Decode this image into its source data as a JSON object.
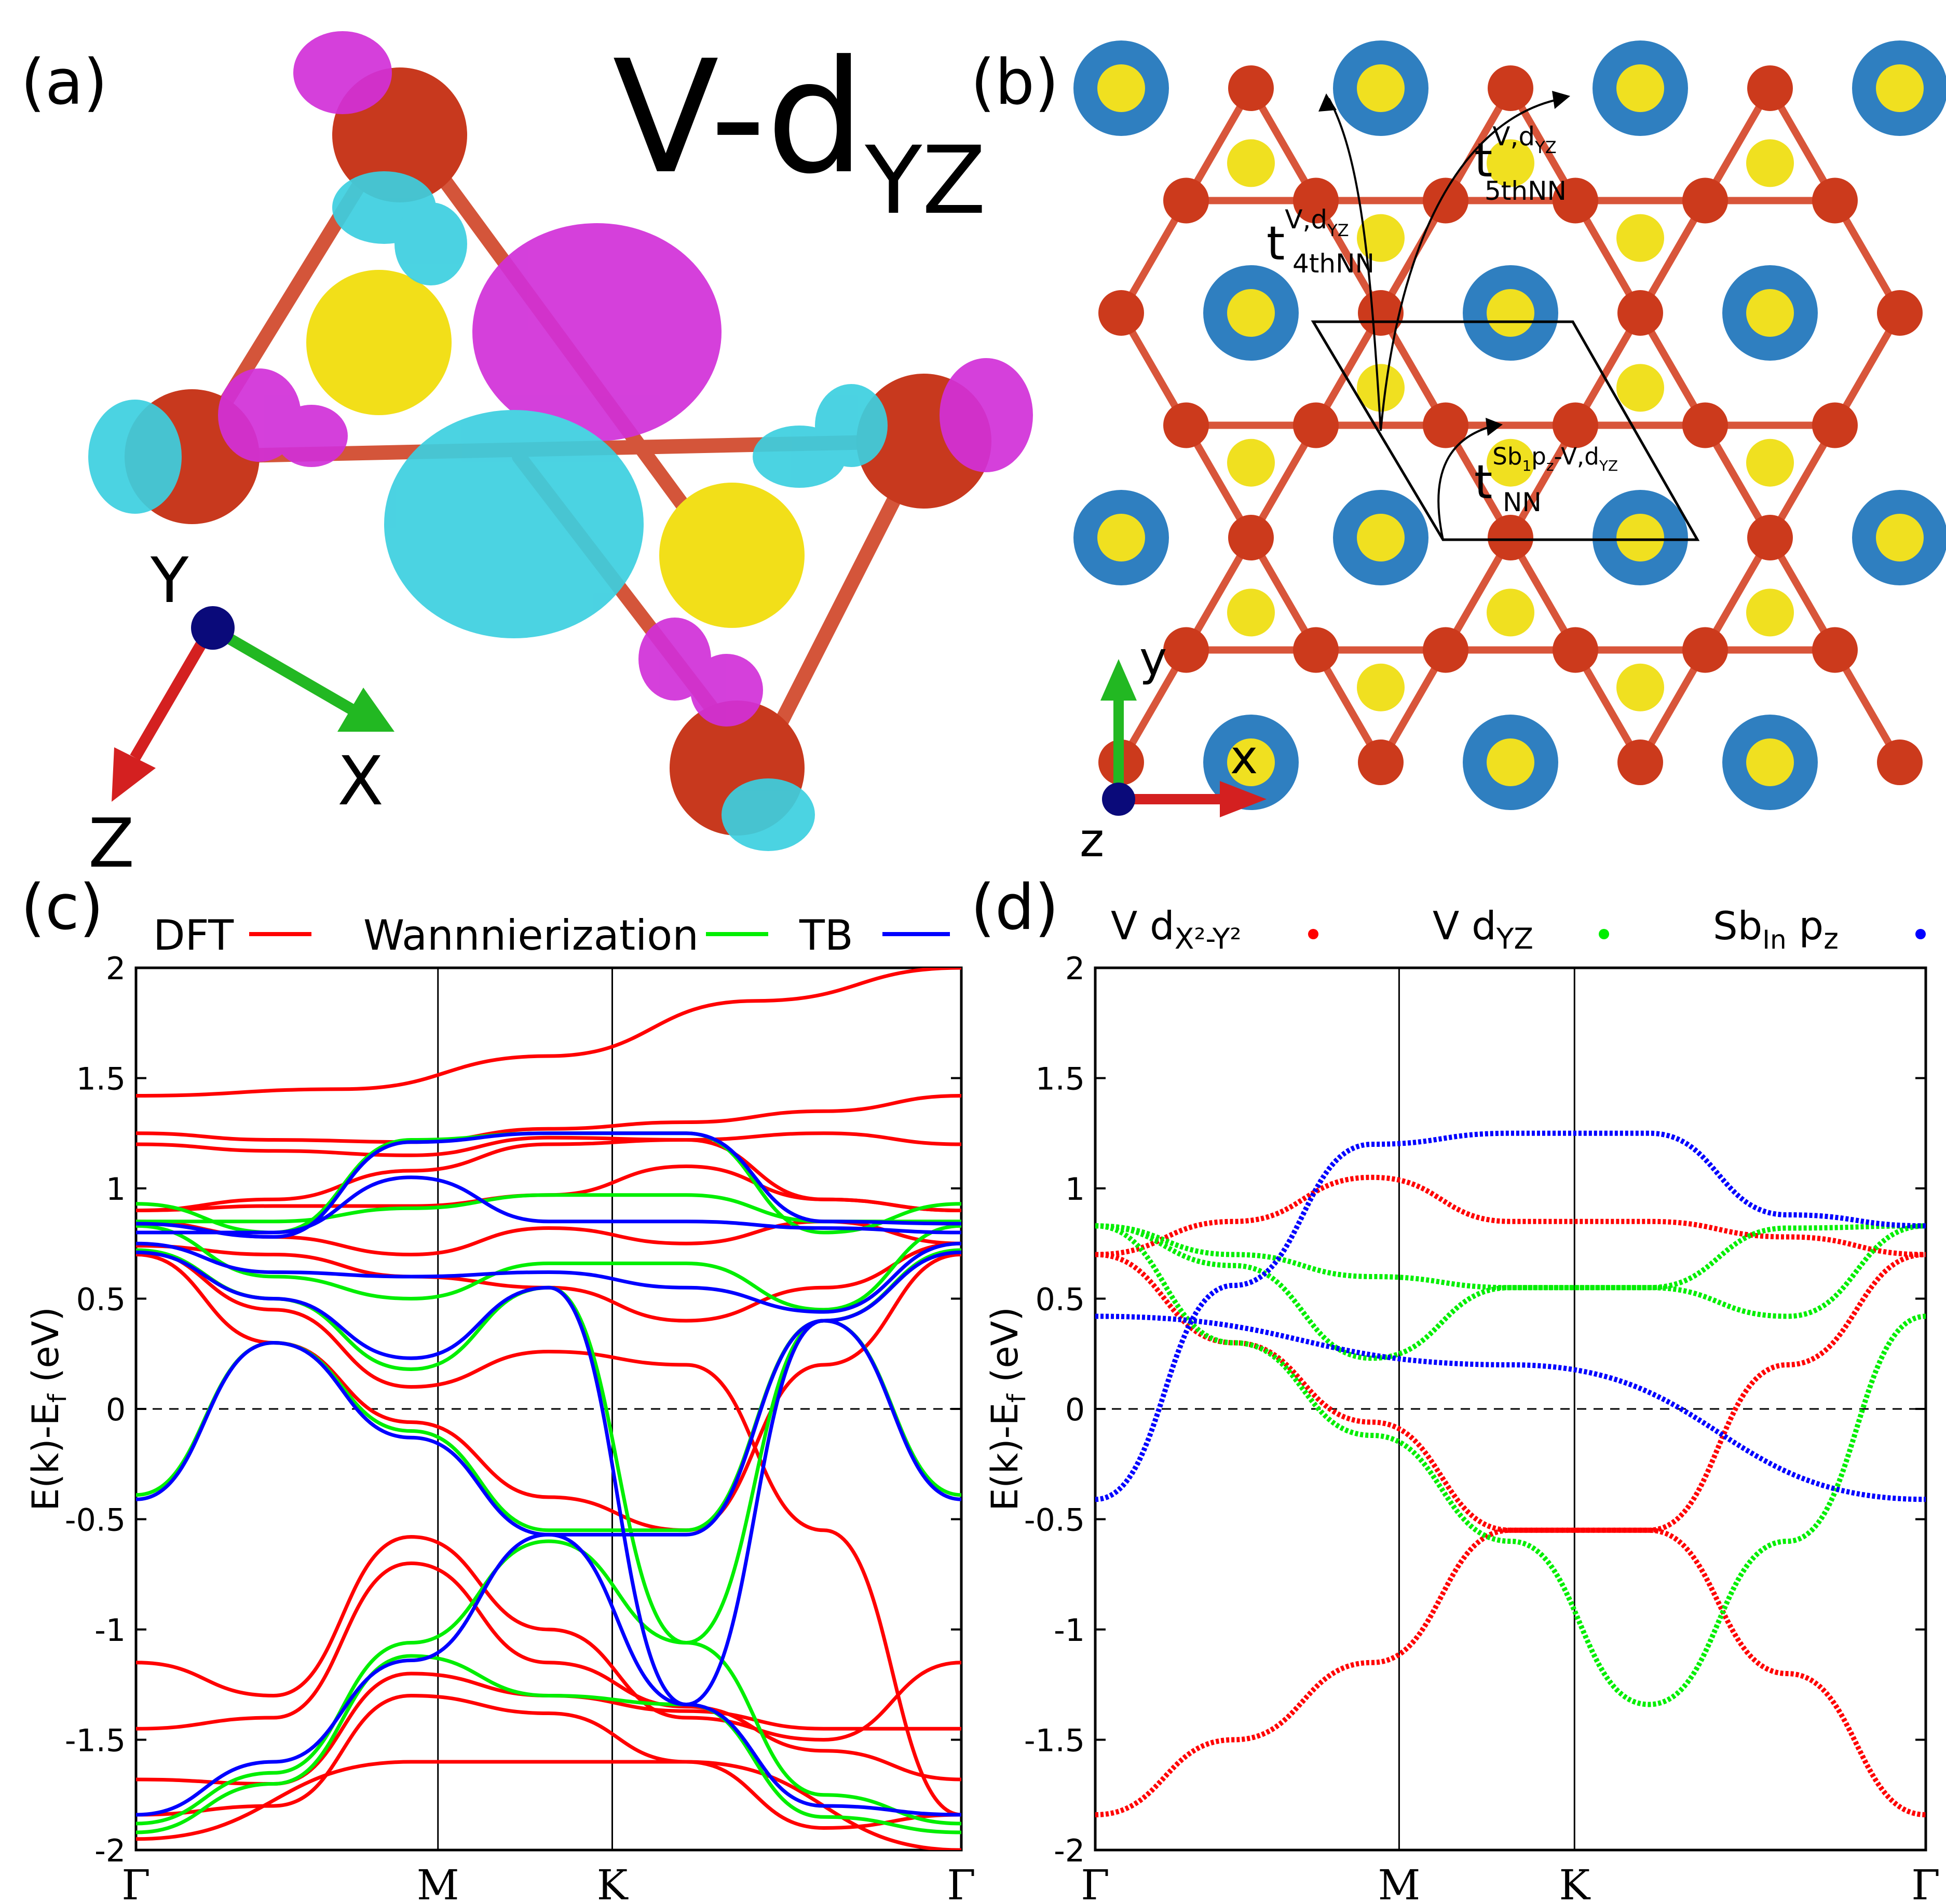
{
  "panel_a": {
    "label": "(a)",
    "title_main": "V-d",
    "title_sub": "YZ",
    "axis_y": "Y",
    "axis_x": "X",
    "axis_z": "Z",
    "colors": {
      "atom_v": "#c8391e",
      "atom_sb": "#f5e11a",
      "lobe_pos": "#d130d8",
      "lobe_neg": "#3ccfe0",
      "axis_x": "#22b822",
      "axis_z": "#d42020",
      "axis_y": "#0a0a7a"
    }
  },
  "panel_b": {
    "label": "(b)",
    "hop_4th": {
      "t": "t",
      "sup_main": "V,d",
      "sup_sub": "YZ",
      "sub": "4thNN"
    },
    "hop_5th": {
      "t": "t",
      "sup_main": "V,d",
      "sup_sub": "YZ",
      "sub": "5thNN"
    },
    "hop_nn": {
      "t": "t",
      "sup_a": "Sb",
      "sup_a_sub": "1",
      "sup_b": "p",
      "sup_b_sub": "z",
      "sup_c": "-V,d",
      "sup_c_sub": "YZ",
      "sub": "NN"
    },
    "axis_x": "x",
    "axis_y": "y",
    "axis_z": "z",
    "colors": {
      "atom_v": "#cc3a1c",
      "atom_sb_in": "#f0e020",
      "atom_sb_out_ring": "#2f7fc0",
      "bond": "#d8553a"
    }
  },
  "panel_c": {
    "label": "(c)",
    "legend": [
      {
        "name": "DFT",
        "color": "#ff0000"
      },
      {
        "name": "Wannnierization",
        "color": "#00ee00"
      },
      {
        "name": "TB",
        "color": "#0000ff"
      }
    ]
  },
  "panel_d": {
    "label": "(d)",
    "legend": [
      {
        "name_main": "V d",
        "name_sub": "X²-Y²",
        "color": "#ff0000"
      },
      {
        "name_main": "V d",
        "name_sub": "YZ",
        "color": "#00ee00"
      },
      {
        "name_main": "Sb",
        "name_sub": "In",
        "name_tail": " p",
        "name_tail_sub": "z",
        "color": "#0000ff"
      }
    ]
  },
  "chart_data": [
    {
      "type": "line",
      "title": "(c)",
      "ylabel": "E(k)-E_f (eV)",
      "xlabel": "",
      "ylim": [
        -2,
        2
      ],
      "x_ticks": [
        "Γ",
        "M",
        "K",
        "Γ"
      ],
      "x_tick_positions": [
        0,
        0.577,
        0.91,
        1.577
      ],
      "y_ticks": [
        "2",
        "1.5",
        "1",
        "0.5",
        "0",
        "-0.5",
        "-1",
        "-1.5",
        "-2"
      ],
      "fermi_level": 0,
      "series": [
        {
          "name": "DFT",
          "color": "#ff0000",
          "bands": [
            [
              1.42,
              1.45,
              1.6,
              1.85,
              2.0
            ],
            [
              1.25,
              1.22,
              1.21,
              1.27,
              1.3,
              1.35,
              1.42
            ],
            [
              1.2,
              1.17,
              1.15,
              1.23,
              1.22,
              1.25,
              1.2
            ],
            [
              0.9,
              0.95,
              1.08,
              1.2,
              1.22,
              0.95,
              0.9
            ],
            [
              0.9,
              0.92,
              0.92,
              0.97,
              1.1,
              0.95,
              0.9
            ],
            [
              0.85,
              0.78,
              0.7,
              0.82,
              0.75,
              0.85,
              0.75
            ],
            [
              0.74,
              0.7,
              0.6,
              0.55,
              0.4,
              0.55,
              0.75
            ],
            [
              0.72,
              0.45,
              0.1,
              0.26,
              0.2,
              -0.55,
              -1.84
            ],
            [
              0.7,
              0.3,
              -0.06,
              -0.4,
              -0.55,
              0.2,
              0.7
            ],
            [
              -1.15,
              -1.3,
              -0.58,
              -1.0,
              -1.4,
              -1.5,
              -1.15
            ],
            [
              -1.45,
              -1.4,
              -0.7,
              -1.15,
              -1.35,
              -1.55,
              -1.68
            ],
            [
              -1.68,
              -1.7,
              -1.2,
              -1.3,
              -1.37,
              -1.45,
              -1.45
            ],
            [
              -1.84,
              -1.8,
              -1.3,
              -1.38,
              -1.6,
              -1.9,
              -1.84
            ],
            [
              -1.95,
              -1.6,
              -1.6,
              -2.0
            ]
          ]
        },
        {
          "name": "Wannnierization",
          "color": "#00ee00",
          "bands": [
            [
              0.93,
              0.8,
              1.22,
              1.25,
              1.25,
              0.8,
              0.93
            ],
            [
              0.85,
              0.85,
              0.91,
              0.97,
              0.97,
              0.85,
              0.85
            ],
            [
              0.83,
              0.6,
              0.5,
              0.66,
              0.66,
              0.45,
              0.83
            ],
            [
              0.72,
              0.5,
              0.18,
              0.55,
              -1.06,
              0.4,
              0.72
            ],
            [
              -0.39,
              0.3,
              -0.1,
              -0.55,
              -0.55,
              0.4,
              -0.39
            ],
            [
              -1.88,
              -1.65,
              -1.06,
              -0.6,
              -1.06,
              -1.75,
              -1.88
            ],
            [
              -1.92,
              -1.7,
              -1.12,
              -1.3,
              -1.34,
              -1.85,
              -1.92
            ]
          ]
        },
        {
          "name": "TB",
          "color": "#0000ff",
          "bands": [
            [
              0.84,
              0.78,
              1.21,
              1.25,
              1.25,
              0.85,
              0.84
            ],
            [
              0.8,
              0.8,
              1.05,
              0.85,
              0.85,
              0.82,
              0.8
            ],
            [
              0.75,
              0.62,
              0.6,
              0.62,
              0.55,
              0.44,
              0.75
            ],
            [
              0.71,
              0.5,
              0.23,
              0.55,
              -1.34,
              0.4,
              0.71
            ],
            [
              -0.41,
              0.3,
              -0.13,
              -0.57,
              -0.57,
              0.4,
              -0.41
            ],
            [
              -1.84,
              -1.6,
              -1.14,
              -0.57,
              -1.34,
              -1.8,
              -1.84
            ]
          ]
        }
      ]
    },
    {
      "type": "scatter",
      "title": "(d)",
      "ylabel": "E(k)-E_f (eV)",
      "xlabel": "",
      "ylim": [
        -2,
        2
      ],
      "x_ticks": [
        "Γ",
        "M",
        "K",
        "Γ"
      ],
      "x_tick_positions": [
        0,
        0.577,
        0.91,
        1.577
      ],
      "y_ticks": [
        "2",
        "1.5",
        "1",
        "0.5",
        "0",
        "-0.5",
        "-1",
        "-1.5",
        "-2"
      ],
      "fermi_level": 0,
      "series": [
        {
          "name": "V dX²-Y²",
          "color": "#ff0000",
          "bands": [
            [
              0.7,
              0.85,
              1.05,
              0.85,
              0.85,
              0.78,
              0.7
            ],
            [
              0.7,
              0.3,
              -0.06,
              -0.55,
              -0.55,
              0.2,
              0.7
            ],
            [
              -1.84,
              -1.5,
              -1.15,
              -0.55,
              -0.55,
              -1.2,
              -1.84
            ]
          ]
        },
        {
          "name": "V dYZ",
          "color": "#00ee00",
          "bands": [
            [
              0.83,
              0.7,
              0.6,
              0.55,
              0.55,
              0.82,
              0.83
            ],
            [
              0.83,
              0.65,
              0.23,
              0.55,
              0.55,
              0.42,
              0.83
            ],
            [
              0.83,
              0.3,
              -0.12,
              -0.6,
              -1.34,
              -0.6,
              0.42
            ]
          ]
        },
        {
          "name": "Sb_In p_z",
          "color": "#0000ff",
          "bands": [
            [
              -0.41,
              0.56,
              1.2,
              1.25,
              1.25,
              0.88,
              0.83
            ],
            [
              0.42,
              0.2,
              -0.41
            ]
          ]
        }
      ]
    }
  ]
}
